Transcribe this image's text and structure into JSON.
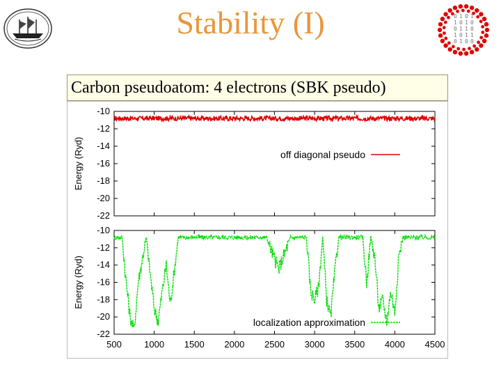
{
  "slide": {
    "title": "Stability (I)",
    "subtitle": "Carbon pseudoatom: 4 electrons (SBK pseudo)"
  },
  "logos": {
    "left": "ship-logo-icon",
    "right": "binary-circle-logo-icon",
    "right_digits": "0101101001101011010"
  },
  "colors": {
    "title": "#e8963a",
    "series_top": "#e00000",
    "series_bottom": "#00dd00"
  },
  "chart_data": [
    {
      "type": "line",
      "panel": "top",
      "ylabel": "Energy (Ryd)",
      "ylim": [
        -22,
        -10
      ],
      "yticks": [
        -10,
        -12,
        -14,
        -16,
        -18,
        -20,
        -22
      ],
      "xlim": [
        500,
        4500
      ],
      "series": [
        {
          "name": "off diagonal pseudo",
          "style": "solid",
          "x": [
            500,
            1000,
            1500,
            2000,
            2500,
            3000,
            3500,
            4000,
            4500
          ],
          "values": [
            -10.8,
            -10.8,
            -10.8,
            -10.8,
            -10.8,
            -10.8,
            -10.8,
            -10.8,
            -10.8
          ]
        }
      ]
    },
    {
      "type": "line",
      "panel": "bottom",
      "ylabel": "Energy (Ryd)",
      "xlabel": "",
      "ylim": [
        -22,
        -10
      ],
      "yticks": [
        -10,
        -12,
        -14,
        -16,
        -18,
        -20,
        -22
      ],
      "xlim": [
        500,
        4500
      ],
      "xticks": [
        500,
        1000,
        1500,
        2000,
        2500,
        3000,
        3500,
        4000,
        4500
      ],
      "series": [
        {
          "name": "localization approximation",
          "style": "dashed",
          "x": [
            500,
            600,
            650,
            700,
            750,
            800,
            900,
            950,
            1000,
            1050,
            1100,
            1150,
            1200,
            1300,
            1500,
            1800,
            2100,
            2300,
            2400,
            2550,
            2700,
            2900,
            2950,
            3000,
            3050,
            3100,
            3150,
            3200,
            3250,
            3300,
            3500,
            3550,
            3600,
            3650,
            3700,
            3750,
            3800,
            3850,
            3900,
            3950,
            4000,
            4050,
            4100,
            4300,
            4500
          ],
          "values": [
            -10.8,
            -10.8,
            -16.0,
            -20.0,
            -21.5,
            -16.0,
            -10.8,
            -15.0,
            -19.0,
            -20.5,
            -17.0,
            -14.0,
            -18.5,
            -10.8,
            -10.8,
            -10.8,
            -10.8,
            -10.8,
            -10.8,
            -14.5,
            -10.8,
            -10.8,
            -17.0,
            -18.0,
            -16.5,
            -10.8,
            -18.0,
            -20.0,
            -15.0,
            -10.8,
            -10.8,
            -10.8,
            -10.8,
            -16.0,
            -10.8,
            -13.0,
            -19.0,
            -18.0,
            -20.5,
            -17.0,
            -19.5,
            -13.0,
            -10.8,
            -10.8,
            -10.8
          ]
        }
      ]
    }
  ]
}
